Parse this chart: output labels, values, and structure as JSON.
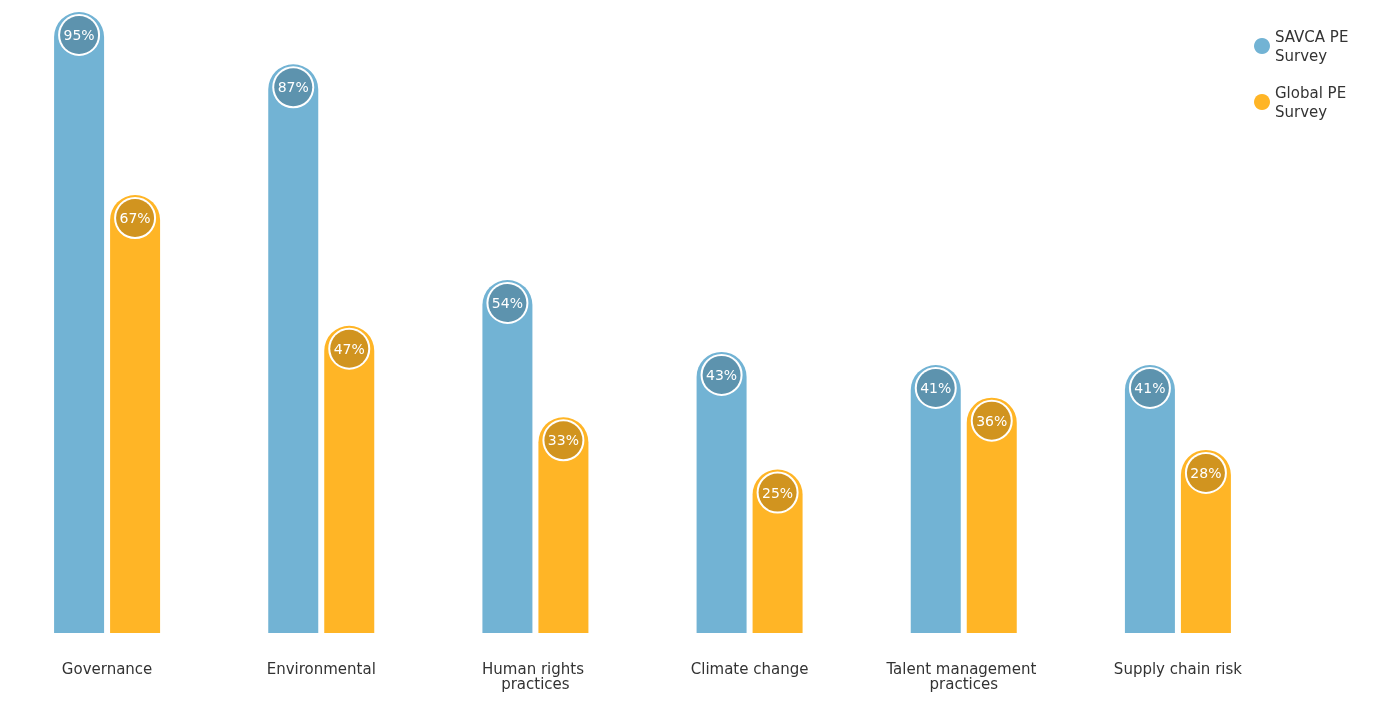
{
  "chart_data": {
    "type": "bar",
    "categories": [
      "Governance",
      "Environmental",
      "Human rights practices",
      "Climate change",
      "Talent management practices",
      "Supply chain risk"
    ],
    "series": [
      {
        "name": "SAVCA PE Survey",
        "color": "#72b3d4",
        "values": [
          95,
          87,
          54,
          43,
          41,
          41
        ],
        "value_labels": [
          "95%",
          "87%",
          "54%",
          "43%",
          "41%",
          "41%"
        ]
      },
      {
        "name": "Global PE Survey",
        "color": "#ffb526",
        "values": [
          67,
          47,
          33,
          25,
          36,
          28
        ],
        "value_labels": [
          "67%",
          "47%",
          "33%",
          "25%",
          "36%",
          "28%"
        ]
      }
    ],
    "legend": "top right",
    "grid": false
  }
}
